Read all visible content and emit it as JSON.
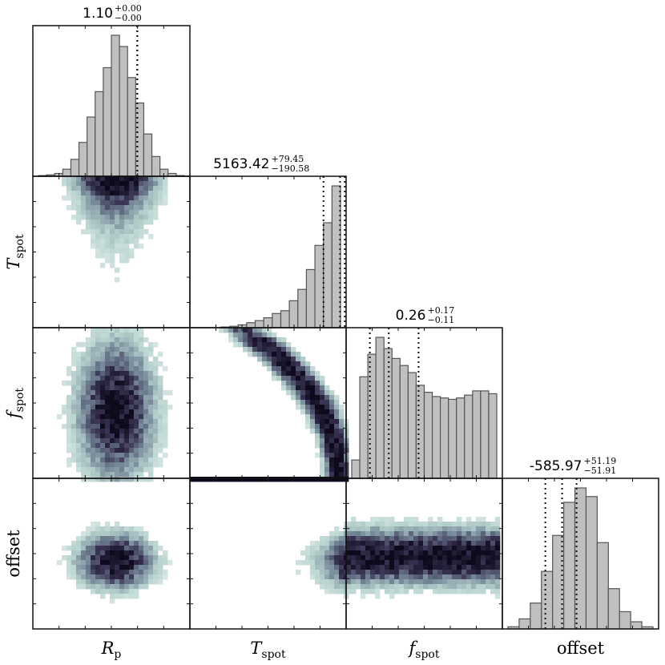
{
  "chart_data": {
    "type": "corner",
    "parameters": [
      "R_p",
      "T_spot",
      "f_spot",
      "offset"
    ],
    "axis_labels": [
      {
        "main": "R",
        "sub": "p"
      },
      {
        "main": "T",
        "sub": "spot"
      },
      {
        "main": "f",
        "sub": "spot"
      },
      {
        "main": "offset",
        "sub": ""
      }
    ],
    "titles": [
      {
        "value": "1.10",
        "plus": "+0.00",
        "minus": "−0.00"
      },
      {
        "value": "5163.42",
        "plus": "+79.45",
        "minus": "−190.58"
      },
      {
        "value": "0.26",
        "plus": "+0.17",
        "minus": "−0.11"
      },
      {
        "value": "-585.97",
        "plus": "+51.19",
        "minus": "−51.91"
      }
    ],
    "histograms": [
      {
        "param": "R_p",
        "counts": [
          0.5,
          1,
          2,
          5,
          12,
          24,
          42,
          60,
          77,
          100,
          92,
          70,
          52,
          30,
          14,
          5,
          2,
          0.5
        ],
        "quantile_bins": [
          12.2,
          12.2,
          12.2
        ]
      },
      {
        "param": "T_spot",
        "counts": [
          0,
          0,
          0,
          0.5,
          1,
          2,
          3.5,
          5,
          7,
          10,
          12,
          19,
          27,
          41,
          58,
          74,
          100
        ],
        "quantile_bins": [
          15.0,
          16.95,
          17.5
        ]
      },
      {
        "param": "f_spot",
        "counts": [
          13,
          72,
          88,
          100,
          92,
          85,
          80,
          75,
          66,
          61,
          58,
          57,
          56,
          57,
          59,
          62,
          62,
          60
        ],
        "quantile_bins": [
          2.25,
          4.6,
          8.3
        ]
      },
      {
        "param": "offset",
        "counts": [
          1.5,
          7,
          18,
          40,
          65,
          88,
          98,
          92,
          60,
          28,
          12,
          5,
          1.5
        ],
        "quantile_bins": [
          3.35,
          4.85,
          6.15
        ]
      }
    ],
    "grid": false,
    "colors": {
      "hist_fill": "#c0c0c0",
      "hist_edge": "#555555",
      "density_dark": "#0f0b1e",
      "density_light": "#dbeae7"
    }
  }
}
